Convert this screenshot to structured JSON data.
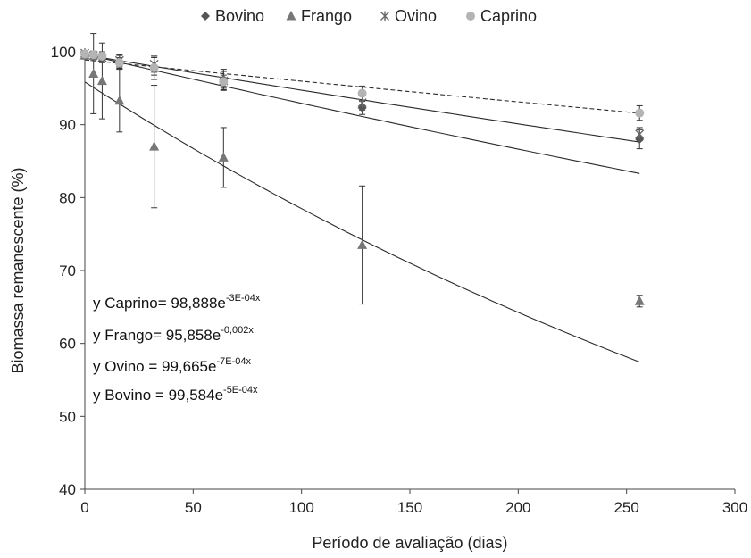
{
  "chart_data": {
    "type": "scatter",
    "xlabel": "Período de avaliação (dias)",
    "ylabel": "Biomassa remanescente (%)",
    "xlim": [
      0,
      300
    ],
    "ylim": [
      40,
      100
    ],
    "xticks": [
      0,
      50,
      100,
      150,
      200,
      250,
      300
    ],
    "yticks": [
      40,
      50,
      60,
      70,
      80,
      90,
      100
    ],
    "grid": false,
    "legend_position": "top",
    "x": [
      0,
      4,
      8,
      16,
      32,
      64,
      128,
      256
    ],
    "series": [
      {
        "name": "Bovino",
        "marker": "diamond",
        "color": "#555555",
        "values": [
          99.6,
          99.4,
          99.1,
          98.6,
          98.0,
          96.2,
          92.3,
          88.0
        ],
        "error": [
          0.4,
          0.6,
          0.6,
          0.9,
          1.2,
          1.4,
          0.9,
          1.3
        ],
        "fit": {
          "a": 99.584,
          "k": -0.0005,
          "dash": "solid"
        }
      },
      {
        "name": "Frango",
        "marker": "triangle",
        "color": "#777777",
        "values": [
          99.5,
          97.0,
          96.0,
          93.3,
          87.0,
          85.5,
          73.5,
          65.8
        ],
        "error": [
          0.5,
          5.5,
          5.2,
          4.3,
          8.4,
          4.1,
          8.1,
          0.8
        ],
        "fit": {
          "a": 95.858,
          "k": -0.002,
          "dash": "solid"
        }
      },
      {
        "name": "Ovino",
        "marker": "asterisk",
        "color": "#666666",
        "values": [
          99.8,
          99.5,
          99.2,
          98.8,
          98.3,
          96.0,
          93.0,
          88.7
        ],
        "error": [
          0.3,
          0.5,
          0.6,
          0.8,
          1.1,
          1.3,
          1.0,
          0.9
        ],
        "fit": {
          "a": 99.665,
          "k": -0.0007,
          "dash": "solid"
        }
      },
      {
        "name": "Caprino",
        "marker": "circle",
        "color": "#b4b4b4",
        "values": [
          99.7,
          99.6,
          99.4,
          98.5,
          97.8,
          95.9,
          94.3,
          91.6
        ],
        "error": [
          0.3,
          0.5,
          0.6,
          0.7,
          1.6,
          0.9,
          1.0,
          1.0
        ],
        "fit": {
          "a": 98.888,
          "k": -0.0003,
          "dash": "dashed"
        }
      }
    ],
    "equations": [
      {
        "text": "y Caprino= 98,888e",
        "exp": "-3E-04x"
      },
      {
        "text": "y Frango= 95,858e",
        "exp": "-0,002x"
      },
      {
        "text": "y Ovino = 99,665e",
        "exp": "-7E-04x"
      },
      {
        "text": "y Bovino = 99,584e",
        "exp": "-5E-04x"
      }
    ]
  }
}
